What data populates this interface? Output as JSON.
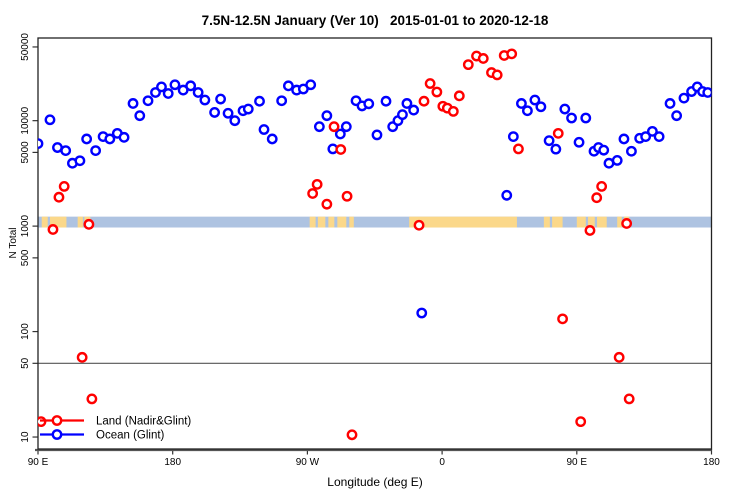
{
  "chart_data": {
    "type": "scatter",
    "title": "7.5N-12.5N January (Ver 10)   2015-01-01 to 2020-12-18",
    "xlabel": "Longitude (deg E)",
    "ylabel": "N Total",
    "x_axis": {
      "lim": [
        90,
        540
      ],
      "ticks": [
        {
          "v": 90,
          "label": "90 E"
        },
        {
          "v": 180,
          "label": "180"
        },
        {
          "v": 270,
          "label": "90 W"
        },
        {
          "v": 360,
          "label": "0"
        },
        {
          "v": 450,
          "label": "90 E"
        },
        {
          "v": 540,
          "label": "180"
        }
      ]
    },
    "y_axis": {
      "scale": "log",
      "lim": [
        7.7,
        60800
      ],
      "ticks": [
        {
          "v": 10,
          "label": "10"
        },
        {
          "v": 50,
          "label": "50"
        },
        {
          "v": 100,
          "label": "100"
        },
        {
          "v": 500,
          "label": "500"
        },
        {
          "v": 1000,
          "label": "1000"
        },
        {
          "v": 5000,
          "label": "5000"
        },
        {
          "v": 10000,
          "label": "10000"
        },
        {
          "v": 50000,
          "label": "50000"
        }
      ]
    },
    "reference_line_y": 50,
    "map_band": {
      "n_min": 970,
      "n_max": 1230,
      "ocean_color": "#aec3e1",
      "land_color": "#fbd88a",
      "land_patches": [
        {
          "lon": 92.5,
          "w": 4
        },
        {
          "lon": 98,
          "w": 11
        },
        {
          "lon": 116.5,
          "w": 3.5
        },
        {
          "lon": 121,
          "w": 4
        },
        {
          "lon": 271.5,
          "w": 4
        },
        {
          "lon": 277,
          "w": 5
        },
        {
          "lon": 284,
          "w": 4
        },
        {
          "lon": 290,
          "w": 6
        },
        {
          "lon": 298,
          "w": 3
        },
        {
          "lon": 338,
          "w": 72
        },
        {
          "lon": 428,
          "w": 4
        },
        {
          "lon": 433.5,
          "w": 7
        },
        {
          "lon": 450,
          "w": 6
        },
        {
          "lon": 457.5,
          "w": 4.5
        },
        {
          "lon": 463.5,
          "w": 6.5
        },
        {
          "lon": 477,
          "w": 3
        },
        {
          "lon": 481.5,
          "w": 3.5
        }
      ]
    },
    "series": [
      {
        "name": "Land (Nadir&Glint)",
        "color": "#ff0000",
        "points": [
          [
            92,
            14
          ],
          [
            100,
            930
          ],
          [
            104,
            1880
          ],
          [
            107.5,
            2380
          ],
          [
            119.5,
            57
          ],
          [
            124,
            1040
          ],
          [
            126,
            23
          ],
          [
            273.5,
            2040
          ],
          [
            276.5,
            2490
          ],
          [
            283,
            1615
          ],
          [
            287.8,
            8770
          ],
          [
            292.3,
            5330
          ],
          [
            296.5,
            1920
          ],
          [
            299.8,
            10.5
          ],
          [
            344.6,
            1020
          ],
          [
            347.9,
            15300
          ],
          [
            352,
            22500
          ],
          [
            356.5,
            18700
          ],
          [
            360.5,
            13700
          ],
          [
            363.5,
            13150
          ],
          [
            367.5,
            12250
          ],
          [
            371.5,
            17200
          ],
          [
            377.5,
            34000
          ],
          [
            383,
            41000
          ],
          [
            387.5,
            38900
          ],
          [
            393,
            28580
          ],
          [
            396.8,
            27160
          ],
          [
            401.5,
            41500
          ],
          [
            406.5,
            43000
          ],
          [
            411,
            5400
          ],
          [
            437.6,
            7580
          ],
          [
            440.5,
            132
          ],
          [
            452.6,
            14
          ],
          [
            458.8,
            910
          ],
          [
            463.3,
            1860
          ],
          [
            466.6,
            2380
          ],
          [
            478.3,
            57
          ],
          [
            483.3,
            1060
          ],
          [
            485,
            23
          ]
        ]
      },
      {
        "name": "Ocean (Glint)",
        "color": "#0000ff",
        "points": [
          [
            90,
            6060
          ],
          [
            98,
            10200
          ],
          [
            103,
            5560
          ],
          [
            108.5,
            5200
          ],
          [
            113,
            3950
          ],
          [
            118,
            4170
          ],
          [
            122.5,
            6710
          ],
          [
            128.5,
            5200
          ],
          [
            133.5,
            7060
          ],
          [
            138,
            6710
          ],
          [
            143,
            7580
          ],
          [
            147.5,
            6950
          ],
          [
            153.5,
            14560
          ],
          [
            158,
            11150
          ],
          [
            163.5,
            15450
          ],
          [
            168.5,
            18500
          ],
          [
            172.5,
            20900
          ],
          [
            177,
            18100
          ],
          [
            181.5,
            21900
          ],
          [
            187,
            19500
          ],
          [
            192,
            21400
          ],
          [
            197,
            18500
          ],
          [
            201.5,
            15700
          ],
          [
            208,
            11970
          ],
          [
            212,
            16030
          ],
          [
            217,
            11750
          ],
          [
            221.5,
            10000
          ],
          [
            227,
            12420
          ],
          [
            230.5,
            12890
          ],
          [
            238,
            15300
          ],
          [
            241,
            8240
          ],
          [
            246.5,
            6710
          ],
          [
            252.8,
            15450
          ],
          [
            257.3,
            21400
          ],
          [
            262.8,
            19500
          ],
          [
            267.3,
            19950
          ],
          [
            272.2,
            21900
          ],
          [
            278,
            8770
          ],
          [
            283,
            11150
          ],
          [
            287,
            5400
          ],
          [
            292,
            7480
          ],
          [
            296,
            8770
          ],
          [
            302.5,
            15450
          ],
          [
            306.5,
            13800
          ],
          [
            311,
            14450
          ],
          [
            316.5,
            7330
          ],
          [
            322.5,
            15300
          ],
          [
            327,
            8770
          ],
          [
            330.5,
            10000
          ],
          [
            333.5,
            11400
          ],
          [
            336.5,
            14560
          ],
          [
            341,
            12600
          ],
          [
            346.4,
            150
          ],
          [
            403.2,
            1960
          ],
          [
            407.6,
            7060
          ],
          [
            413,
            14560
          ],
          [
            417,
            12420
          ],
          [
            422,
            15700
          ],
          [
            426,
            13550
          ],
          [
            431.5,
            6460
          ],
          [
            436,
            5370
          ],
          [
            442,
            12890
          ],
          [
            446.5,
            10600
          ],
          [
            451.5,
            6240
          ],
          [
            456,
            10600
          ],
          [
            461.5,
            5130
          ],
          [
            464.5,
            5560
          ],
          [
            468,
            5250
          ],
          [
            471.5,
            3950
          ],
          [
            477,
            4200
          ],
          [
            481.5,
            6710
          ],
          [
            486.5,
            5130
          ],
          [
            492,
            6810
          ],
          [
            496,
            7060
          ],
          [
            500.5,
            7920
          ],
          [
            505,
            7060
          ],
          [
            512.3,
            14560
          ],
          [
            516.7,
            11150
          ],
          [
            521.6,
            16370
          ],
          [
            526.7,
            18880
          ],
          [
            530.5,
            20900
          ],
          [
            534,
            18880
          ],
          [
            537.5,
            18500
          ]
        ]
      }
    ],
    "legend": {
      "position": "bottom-left"
    },
    "colors": {
      "box": "#222222",
      "axis_line": "#555555",
      "reference_line": "#555555"
    },
    "marker": {
      "shape": "open-circle",
      "radius": 4.2,
      "stroke_width": 2.4
    }
  }
}
